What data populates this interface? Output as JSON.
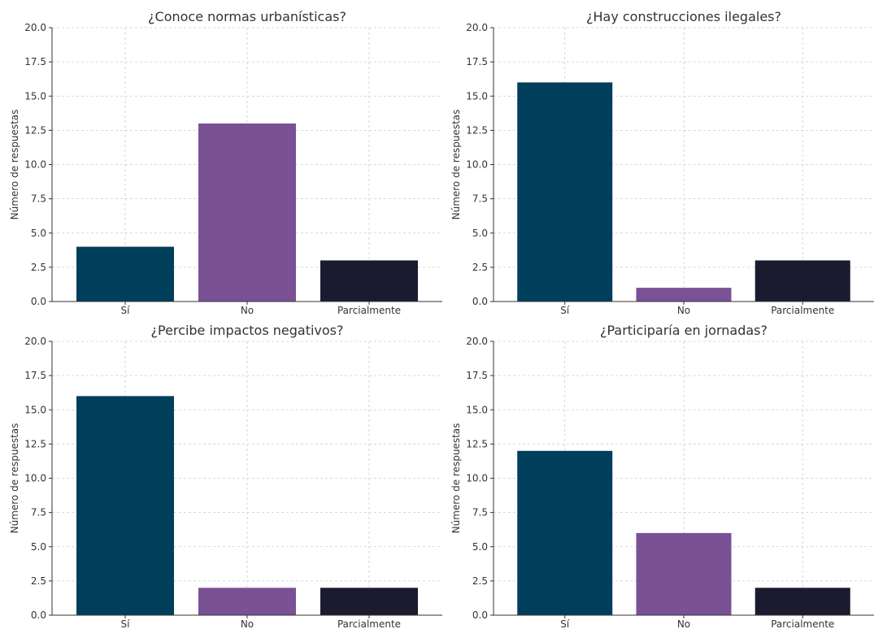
{
  "chart_data": [
    {
      "type": "bar",
      "title": "¿Conoce normas urbanísticas?",
      "categories": [
        "Sí",
        "No",
        "Parcialmente"
      ],
      "values": [
        4,
        13,
        3
      ],
      "colors": [
        "#003f5c",
        "#7a5195",
        "#1b1b2f"
      ],
      "xlabel": "",
      "ylabel": "Número de respuestas",
      "ylim": [
        0,
        20
      ],
      "yticks": [
        "0.0",
        "2.5",
        "5.0",
        "7.5",
        "10.0",
        "12.5",
        "15.0",
        "17.5",
        "20.0"
      ],
      "grid": true
    },
    {
      "type": "bar",
      "title": "¿Hay construcciones ilegales?",
      "categories": [
        "Sí",
        "No",
        "Parcialmente"
      ],
      "values": [
        16,
        1,
        3
      ],
      "colors": [
        "#003f5c",
        "#7a5195",
        "#1b1b2f"
      ],
      "xlabel": "",
      "ylabel": "Número de respuestas",
      "ylim": [
        0,
        20
      ],
      "yticks": [
        "0.0",
        "2.5",
        "5.0",
        "7.5",
        "10.0",
        "12.5",
        "15.0",
        "17.5",
        "20.0"
      ],
      "grid": true
    },
    {
      "type": "bar",
      "title": "¿Percibe impactos negativos?",
      "categories": [
        "Sí",
        "No",
        "Parcialmente"
      ],
      "values": [
        16,
        2,
        2
      ],
      "colors": [
        "#003f5c",
        "#7a5195",
        "#1b1b2f"
      ],
      "xlabel": "",
      "ylabel": "Número de respuestas",
      "ylim": [
        0,
        20
      ],
      "yticks": [
        "0.0",
        "2.5",
        "5.0",
        "7.5",
        "10.0",
        "12.5",
        "15.0",
        "17.5",
        "20.0"
      ],
      "grid": true
    },
    {
      "type": "bar",
      "title": "¿Participaría en jornadas?",
      "categories": [
        "Sí",
        "No",
        "Parcialmente"
      ],
      "values": [
        12,
        6,
        2
      ],
      "colors": [
        "#003f5c",
        "#7a5195",
        "#1b1b2f"
      ],
      "xlabel": "",
      "ylabel": "Número de respuestas",
      "ylim": [
        0,
        20
      ],
      "yticks": [
        "0.0",
        "2.5",
        "5.0",
        "7.5",
        "10.0",
        "12.5",
        "15.0",
        "17.5",
        "20.0"
      ],
      "grid": true
    }
  ]
}
